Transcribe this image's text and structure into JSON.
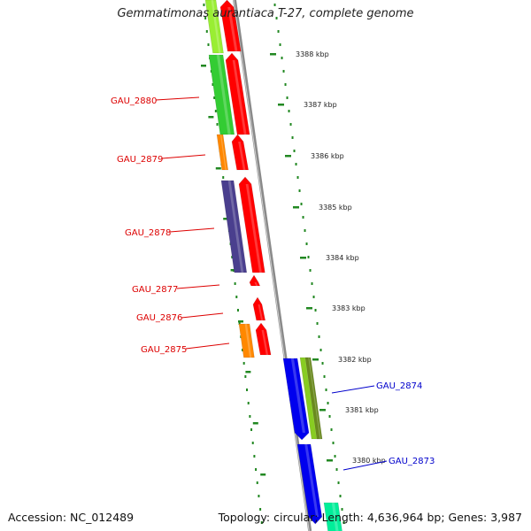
{
  "title": "Gemmatimonas aurantiaca T-27, complete genome",
  "footer": {
    "accession": "Accession: NC_012489",
    "stats": "Topology: circular; Length: 4,636,964 bp; Genes: 3,987"
  },
  "colors": {
    "forward_label": "#dd0000",
    "reverse_label": "#0000cc",
    "tick": "#228822",
    "strand_line": "#8a8a8a"
  },
  "scale_ticks": [
    {
      "label": "3388 kbp"
    },
    {
      "label": "3387 kbp"
    },
    {
      "label": "3386 kbp"
    },
    {
      "label": "3385 kbp"
    },
    {
      "label": "3384 kbp"
    },
    {
      "label": "3383 kbp"
    },
    {
      "label": "3382 kbp"
    },
    {
      "label": "3381 kbp"
    },
    {
      "label": "3380 kbp"
    }
  ],
  "gene_labels": [
    {
      "name": "GAU_2880",
      "strand": "forward"
    },
    {
      "name": "GAU_2879",
      "strand": "forward"
    },
    {
      "name": "GAU_2878",
      "strand": "forward"
    },
    {
      "name": "GAU_2877",
      "strand": "forward"
    },
    {
      "name": "GAU_2876",
      "strand": "forward"
    },
    {
      "name": "GAU_2875",
      "strand": "forward"
    },
    {
      "name": "GAU_2874",
      "strand": "reverse"
    },
    {
      "name": "GAU_2873",
      "strand": "reverse"
    }
  ],
  "genes": [
    {
      "strand": "forward",
      "color": "#ff0000",
      "track": "inner"
    },
    {
      "strand": "forward",
      "color": "#ff0000",
      "track": "inner"
    },
    {
      "strand": "forward",
      "color": "#ff0000",
      "track": "inner"
    },
    {
      "strand": "forward",
      "color": "#ff0000",
      "track": "inner"
    },
    {
      "strand": "forward",
      "color": "#ff0000",
      "track": "inner"
    },
    {
      "strand": "forward",
      "color": "#ff0000",
      "track": "inner"
    },
    {
      "strand": "forward",
      "color": "#ff0000",
      "track": "inner"
    },
    {
      "strand": "reverse",
      "color": "#0000ee",
      "track": "inner"
    },
    {
      "strand": "reverse",
      "color": "#0000ee",
      "track": "inner"
    },
    {
      "strand": "reverse",
      "color": "#00ee99",
      "track": "inner"
    },
    {
      "strand": "annotation",
      "color": "#99ee33",
      "track": "outer"
    },
    {
      "strand": "annotation",
      "color": "#33cc33",
      "track": "outer"
    },
    {
      "strand": "annotation",
      "color": "#ff8800",
      "track": "outer"
    },
    {
      "strand": "annotation",
      "color": "#4a3f8e",
      "track": "outer"
    },
    {
      "strand": "annotation",
      "color": "#ff8800",
      "track": "outer"
    },
    {
      "strand": "annotation",
      "color": "#88cc22",
      "track": "outer"
    }
  ]
}
